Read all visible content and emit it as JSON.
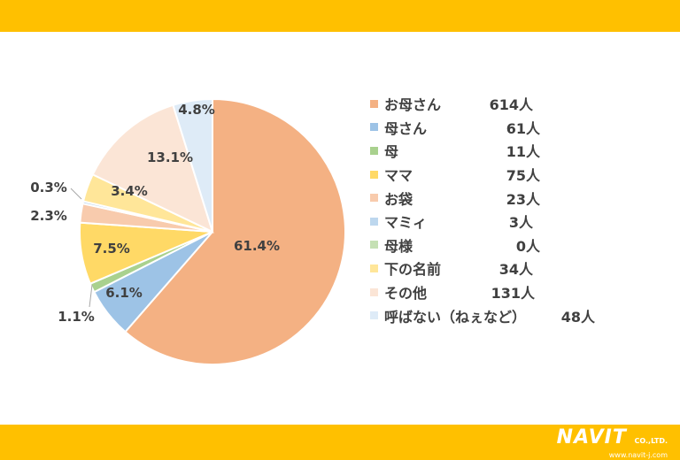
{
  "chart_data": {
    "type": "pie",
    "start_angle_deg": 0,
    "direction": "clockwise",
    "legend_position": "right",
    "slices": [
      {
        "name": "お母さん",
        "count": "614人",
        "value": 61.4,
        "label": "61.4%",
        "color": "#f4b183"
      },
      {
        "name": "母さん",
        "count": "61人",
        "value": 6.1,
        "label": "6.1%",
        "color": "#9dc3e6"
      },
      {
        "name": "母",
        "count": "11人",
        "value": 1.1,
        "label": "1.1%",
        "color": "#a9d18e"
      },
      {
        "name": "ママ",
        "count": "75人",
        "value": 7.5,
        "label": "7.5%",
        "color": "#ffd966"
      },
      {
        "name": "お袋",
        "count": "23人",
        "value": 2.3,
        "label": "2.3%",
        "color": "#f8cbad"
      },
      {
        "name": "マミィ",
        "count": "3人",
        "value": 0.3,
        "label": "0.3%",
        "color": "#bdd7ee"
      },
      {
        "name": "母様",
        "count": "0人",
        "value": 0.0,
        "label": "",
        "color": "#c5e0b4"
      },
      {
        "name": "下の名前",
        "count": "34人",
        "value": 3.4,
        "label": "3.4%",
        "color": "#ffe699"
      },
      {
        "name": "その他",
        "count": "131人",
        "value": 13.1,
        "label": "13.1%",
        "color": "#fbe5d6"
      },
      {
        "name": "呼ばない（ねぇなど）",
        "count": "48人",
        "value": 4.8,
        "label": "4.8%",
        "color": "#deebf7"
      }
    ]
  },
  "logo": {
    "brand": "NAVIT",
    "suffix": "CO.,LTD.",
    "url": "www.navit-j.com"
  }
}
